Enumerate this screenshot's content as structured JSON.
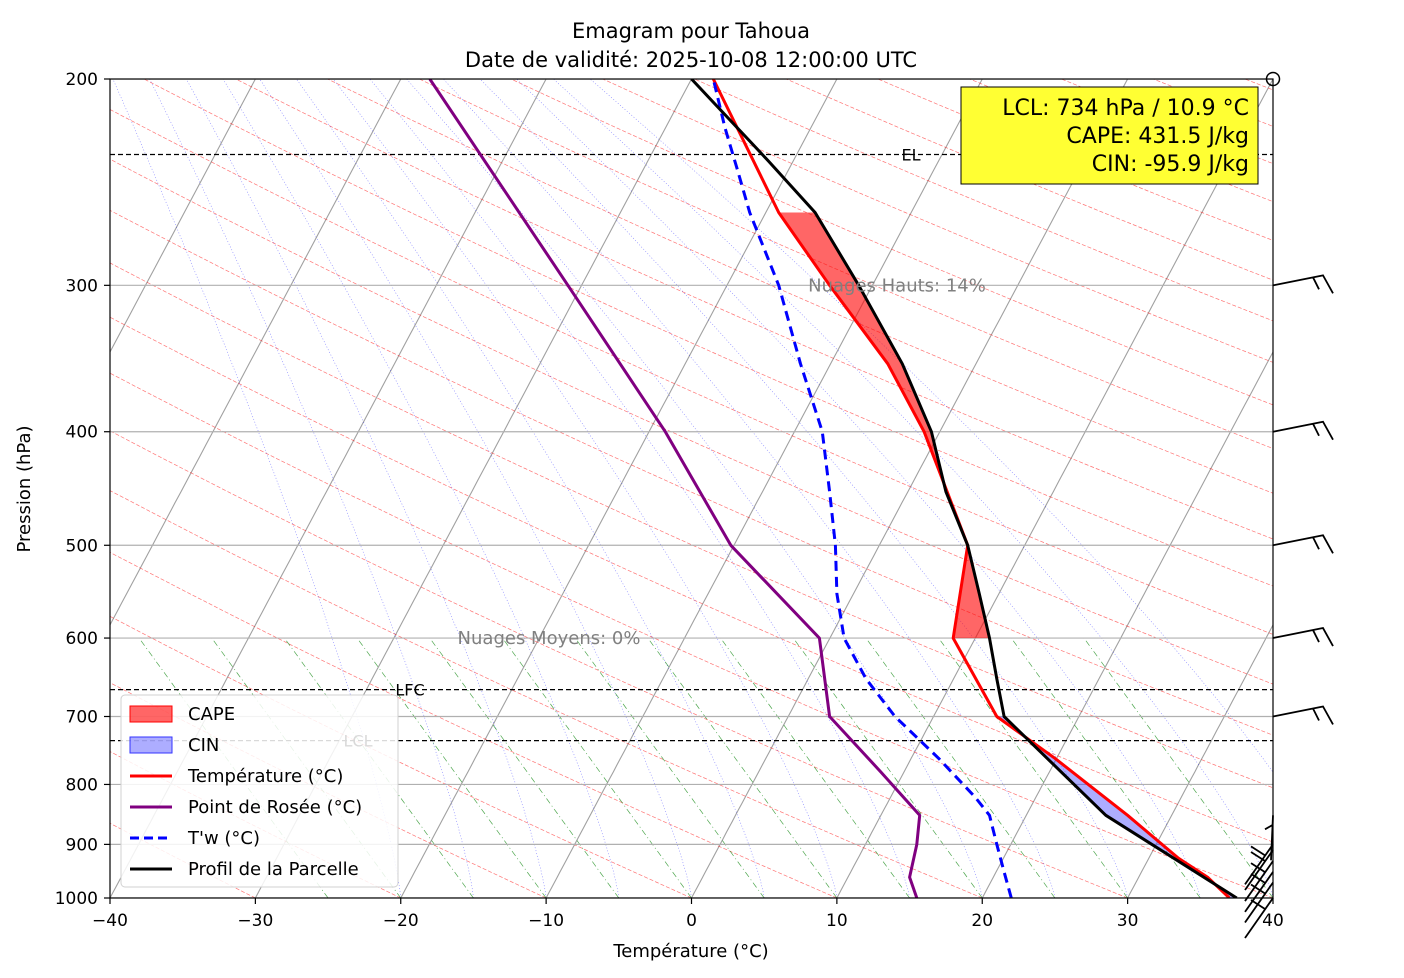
{
  "chart_data": {
    "type": "line",
    "title": "Emagram pour Tahoua",
    "subtitle": "Date de validité: 2025-10-08 12:00:00 UTC",
    "xlabel": "Température (°C)",
    "ylabel": "Pression (hPa)",
    "xlim": [
      -40,
      40
    ],
    "ylim": [
      1000,
      200
    ],
    "y_scale": "log",
    "grid": true,
    "x_ticks": [
      -40,
      -30,
      -20,
      -10,
      0,
      10,
      20,
      30,
      40
    ],
    "x_tick_labels": [
      "−40",
      "−30",
      "−20",
      "−10",
      "0",
      "10",
      "20",
      "30",
      "40"
    ],
    "y_ticks": [
      1000,
      900,
      800,
      700,
      600,
      500,
      400,
      300,
      200
    ],
    "y_tick_labels": [
      "1000",
      "900",
      "800",
      "700",
      "600",
      "500",
      "400",
      "300",
      "200"
    ],
    "series": [
      {
        "name": "Température (°C)",
        "color": "#ff0000",
        "style": "solid",
        "points": [
          [
            37,
            1000
          ],
          [
            35.5,
            960
          ],
          [
            33.5,
            925
          ],
          [
            30,
            850
          ],
          [
            25,
            760
          ],
          [
            21,
            700
          ],
          [
            18,
            600
          ],
          [
            19,
            500
          ],
          [
            16,
            400
          ],
          [
            13.5,
            350
          ],
          [
            9.5,
            300
          ],
          [
            6,
            260
          ],
          [
            1.5,
            200
          ]
        ]
      },
      {
        "name": "Point de Rosée (°C)",
        "color": "#800080",
        "style": "solid",
        "points": [
          [
            15.5,
            1000
          ],
          [
            15,
            960
          ],
          [
            15.5,
            900
          ],
          [
            15.7,
            850
          ],
          [
            13,
            780
          ],
          [
            9.5,
            700
          ],
          [
            8.8,
            600
          ],
          [
            2.7,
            500
          ],
          [
            -1.8,
            400
          ],
          [
            -8.5,
            300
          ],
          [
            -18,
            200
          ]
        ]
      },
      {
        "name": "T'w (°C)",
        "color": "#0000ff",
        "style": "dashed",
        "points": [
          [
            22,
            1000
          ],
          [
            21.5,
            950
          ],
          [
            21,
            900
          ],
          [
            20.5,
            850
          ],
          [
            19.5,
            820
          ],
          [
            17,
            760
          ],
          [
            14,
            700
          ],
          [
            12,
            650
          ],
          [
            10.5,
            600
          ],
          [
            10,
            550
          ],
          [
            9.9,
            500
          ],
          [
            9.5,
            450
          ],
          [
            9,
            400
          ],
          [
            7.5,
            350
          ],
          [
            6,
            300
          ],
          [
            4,
            260
          ],
          [
            3.2,
            240
          ],
          [
            2.3,
            220
          ],
          [
            1.5,
            200
          ]
        ]
      },
      {
        "name": "Profil de la Parcelle",
        "color": "#000000",
        "style": "solid",
        "points": [
          [
            37.5,
            1000
          ],
          [
            28.5,
            850
          ],
          [
            21.5,
            700
          ],
          [
            21,
            650
          ],
          [
            20.5,
            600
          ],
          [
            19.8,
            550
          ],
          [
            19,
            500
          ],
          [
            17.5,
            450
          ],
          [
            16.5,
            400
          ],
          [
            14.5,
            350
          ],
          [
            11.5,
            300
          ],
          [
            8.5,
            260
          ],
          [
            5.3,
            235
          ],
          [
            0,
            200
          ]
        ]
      }
    ],
    "areas": [
      {
        "name": "CAPE",
        "color": "#ff0000",
        "opacity": 0.6,
        "between": [
          "Température (°C)",
          "Profil de la Parcelle"
        ],
        "p_range": [
          600,
          260
        ]
      },
      {
        "name": "CIN",
        "color": "#3333ff",
        "opacity": 0.4,
        "between": [
          "Température (°C)",
          "Profil de la Parcelle"
        ],
        "p_range": [
          1000,
          700
        ]
      }
    ],
    "levels": [
      {
        "label": "EL",
        "pressure": 232
      },
      {
        "label": "LFC",
        "pressure": 664
      },
      {
        "label": "LCL",
        "pressure": 734
      }
    ],
    "cloud_annotations": [
      {
        "text": "Nuages Hauts: 14%",
        "pressure": 300
      },
      {
        "text": "Nuages Moyens: 0%",
        "pressure": 600
      }
    ],
    "info_box": {
      "lines": [
        "LCL: 734 hPa / 10.9 °C",
        "CAPE: 431.5 J/kg",
        "CIN: -95.9 J/kg"
      ],
      "background": "#ffff33"
    },
    "legend": {
      "position": "bottom-left",
      "entries": [
        {
          "label": "CAPE",
          "kind": "patch",
          "color": "#ff0000"
        },
        {
          "label": "CIN",
          "kind": "patch",
          "color": "#3333ff"
        },
        {
          "label": "Température (°C)",
          "kind": "line",
          "color": "#ff0000"
        },
        {
          "label": "Point de Rosée (°C)",
          "kind": "line",
          "color": "#800080"
        },
        {
          "label": "T'w (°C)",
          "kind": "dashed",
          "color": "#0000ff"
        },
        {
          "label": "Profil de la Parcelle",
          "kind": "line",
          "color": "#000000"
        }
      ]
    },
    "wind_barbs": {
      "pressures": [
        1000,
        970,
        950,
        930,
        910,
        900,
        850,
        700,
        600,
        500,
        400,
        300
      ]
    }
  }
}
